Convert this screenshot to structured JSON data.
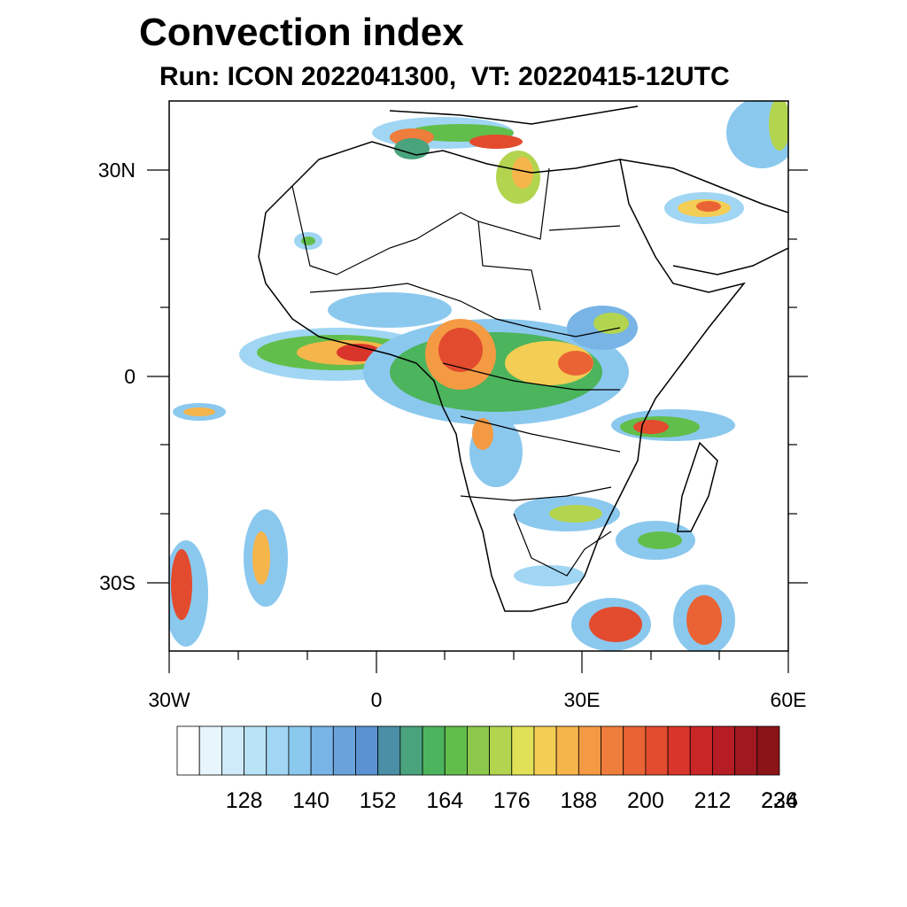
{
  "title": "Convection index",
  "subtitle": "Run: ICON 2022041300,  VT: 20220415-12UTC",
  "axes": {
    "x_ticks": [
      "30W",
      "0",
      "30E",
      "60E"
    ],
    "y_ticks": [
      "30N",
      "0",
      "30S"
    ]
  },
  "colorbar": {
    "labels": [
      "128",
      "140",
      "152",
      "164",
      "176",
      "188",
      "200",
      "212",
      "224",
      "236"
    ],
    "colors": [
      "#ffffff",
      "#e8f5fc",
      "#cfebf9",
      "#b8e2f6",
      "#a0d6f3",
      "#8bc8ee",
      "#78b4e6",
      "#6aa3dc",
      "#5b93d2",
      "#4a8fa5",
      "#49a37d",
      "#4cb45c",
      "#62be4a",
      "#8cc84c",
      "#b3d44f",
      "#e1e158",
      "#f4cd54",
      "#f6b54b",
      "#f49a43",
      "#ef7d3b",
      "#ea6334",
      "#e24b2e",
      "#d9352a",
      "#c92628",
      "#b61c24",
      "#a01820",
      "#8b1419"
    ]
  },
  "map": {
    "lon_range": [
      -30,
      60
    ],
    "lat_range": [
      -40,
      40
    ]
  }
}
